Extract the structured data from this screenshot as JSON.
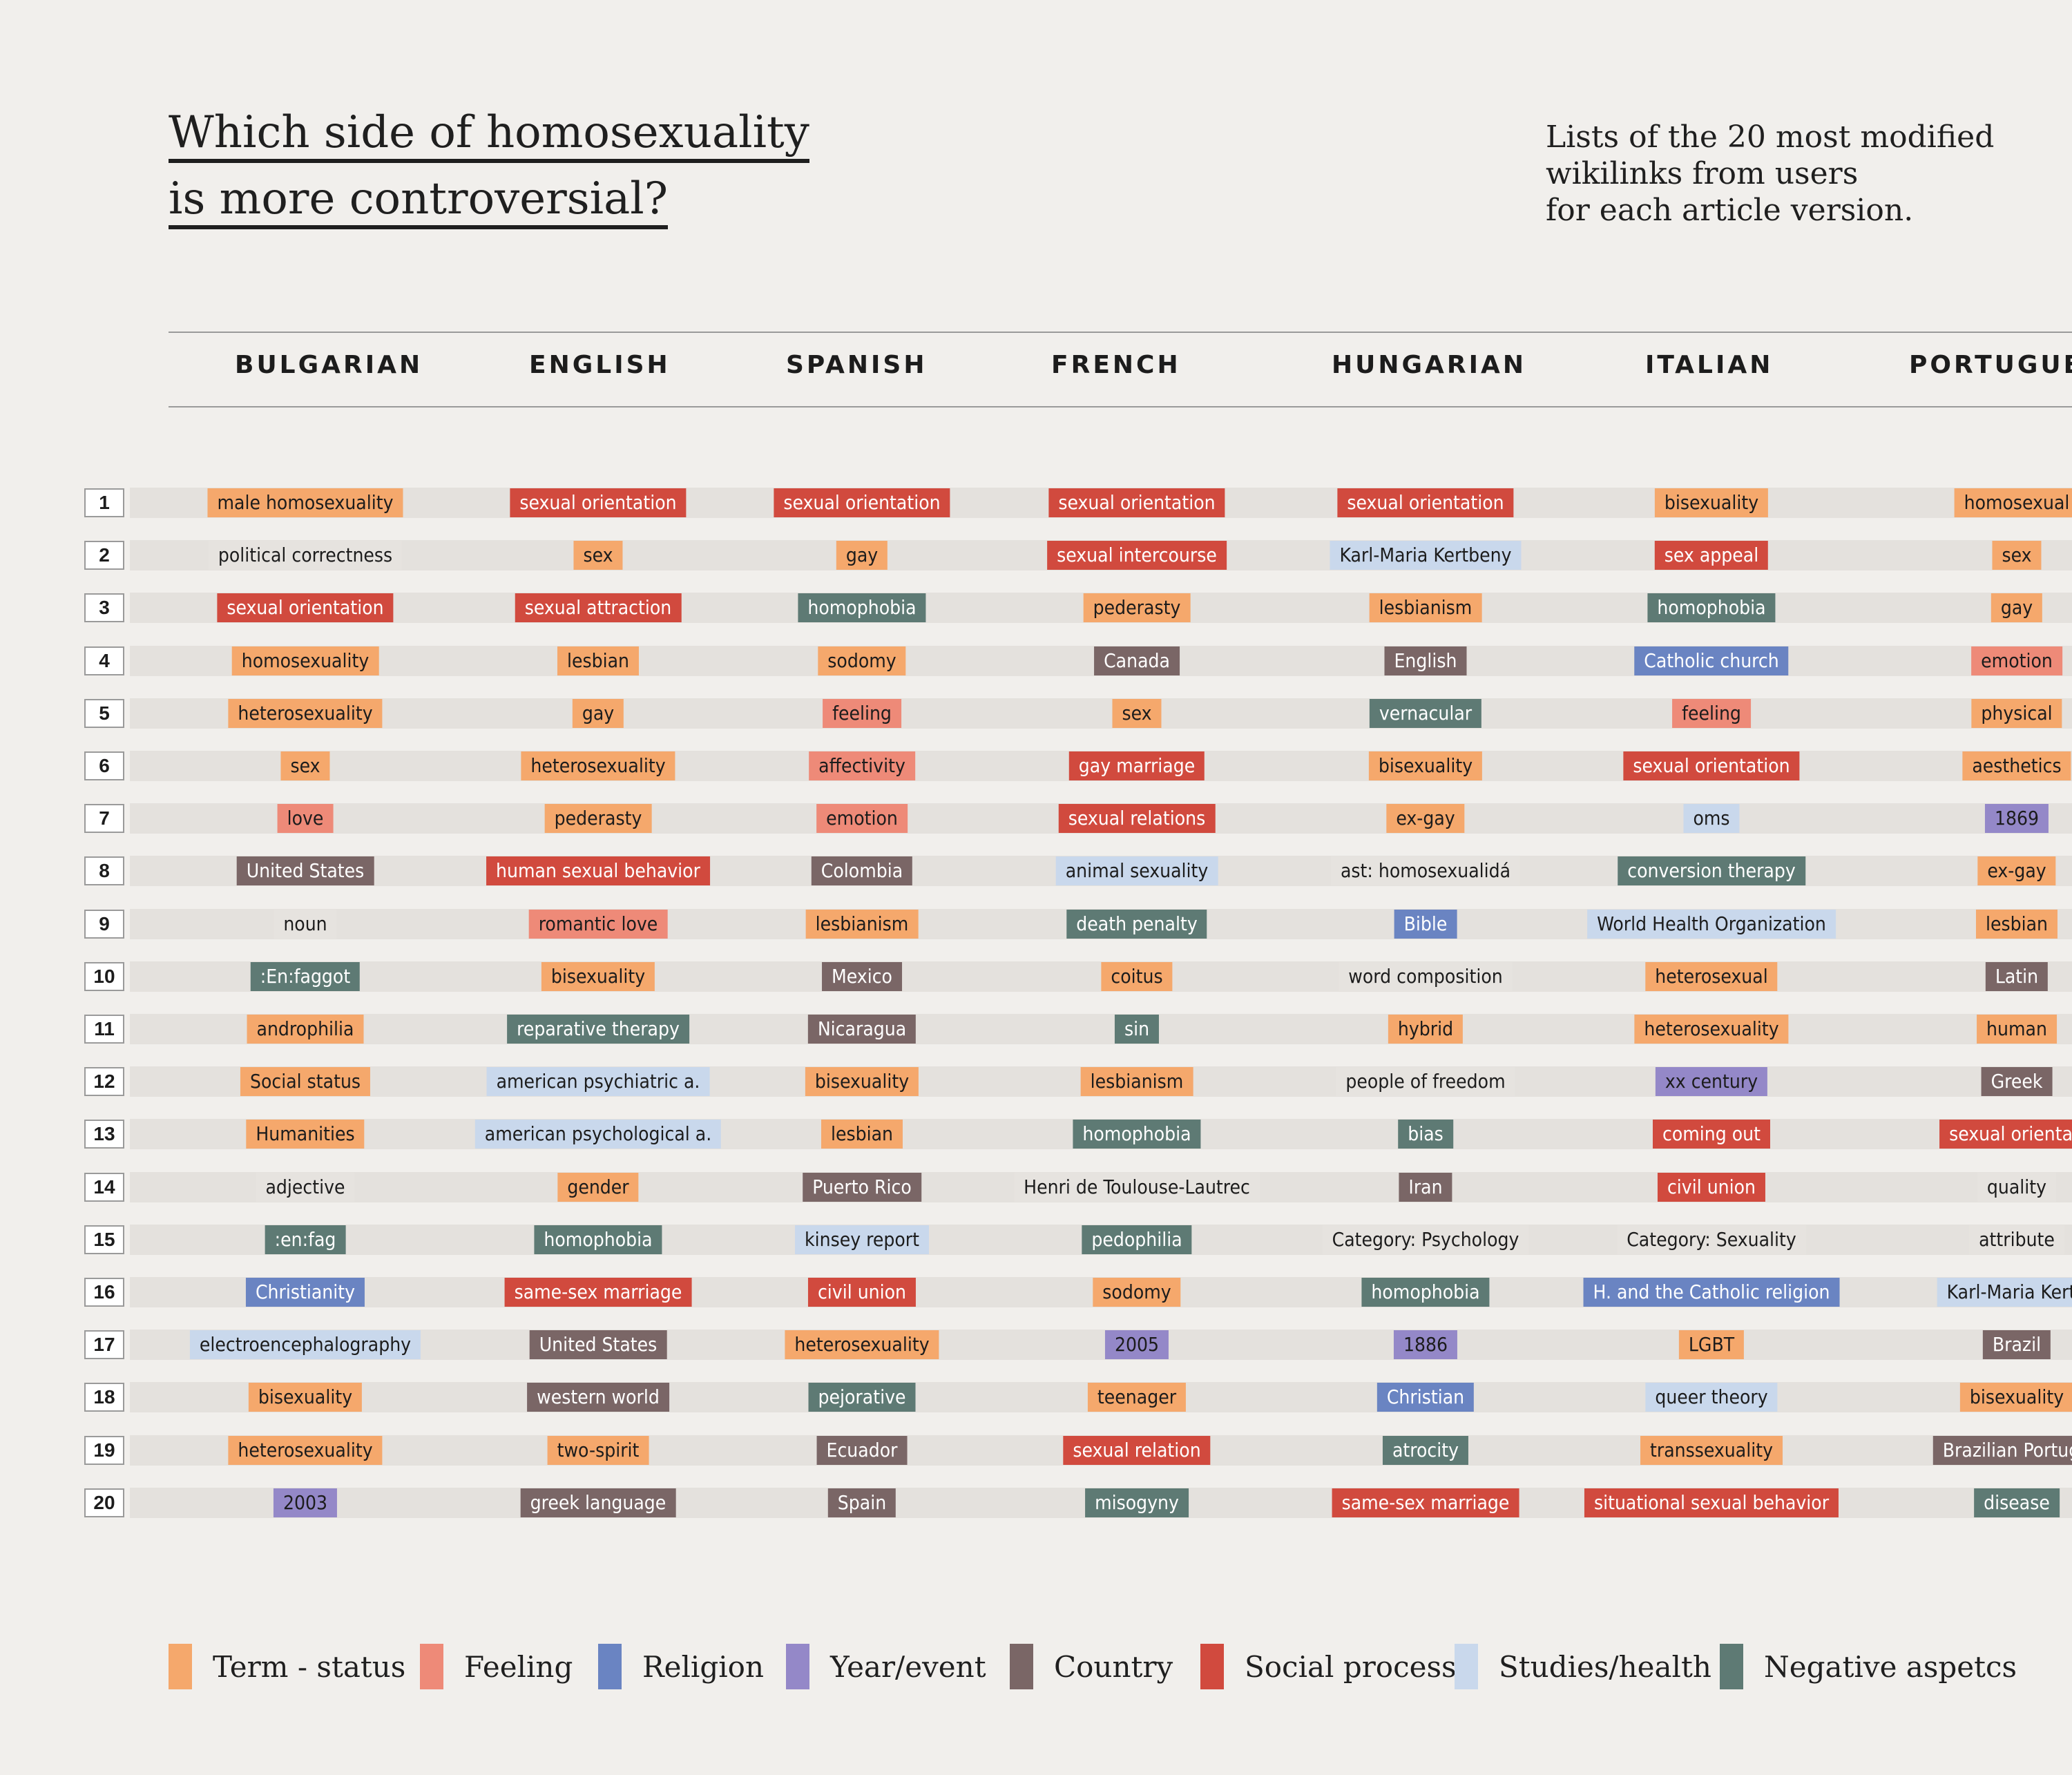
{
  "chart_data": {
    "type": "table",
    "title_line1": "Which side of homosexuality",
    "title_line2": "is more controversial?",
    "subtitle_line1": "Lists of the 20 most modified",
    "subtitle_line2": "wikilinks from users",
    "subtitle_line3": "for each article version.",
    "ranks": [
      "1",
      "2",
      "3",
      "4",
      "5",
      "6",
      "7",
      "8",
      "9",
      "10",
      "11",
      "12",
      "13",
      "14",
      "15",
      "16",
      "17",
      "18",
      "19",
      "20"
    ],
    "categories": [
      {
        "key": "term",
        "label": "Term - status",
        "color": "#f5a86c",
        "text": "dark-text"
      },
      {
        "key": "feeling",
        "label": "Feeling",
        "color": "#ee8a78",
        "text": "dark-text"
      },
      {
        "key": "religion",
        "label": "Religion",
        "color": "#6a84c2",
        "text": "light-text"
      },
      {
        "key": "year",
        "label": "Year/event",
        "color": "#9488c8",
        "text": "dark-text"
      },
      {
        "key": "country",
        "label": "Country",
        "color": "#7a6666",
        "text": "light-text"
      },
      {
        "key": "social",
        "label": "Social process",
        "color": "#d14a3e",
        "text": "light-text"
      },
      {
        "key": "studies",
        "label": "Studies/health",
        "color": "#c9d8ec",
        "text": "dark-text"
      },
      {
        "key": "negative",
        "label": "Negative aspetcs",
        "color": "#5e7a74",
        "text": "light-text"
      },
      {
        "key": "none",
        "label": "",
        "color": "#e6e3df",
        "text": "dark-text"
      }
    ],
    "columns": [
      {
        "name": "BULGARIAN",
        "items": [
          {
            "label": "male homosexuality",
            "category": "term"
          },
          {
            "label": "political correctness",
            "category": "none"
          },
          {
            "label": "sexual orientation",
            "category": "social"
          },
          {
            "label": "homosexuality",
            "category": "term"
          },
          {
            "label": "heterosexuality",
            "category": "term"
          },
          {
            "label": "sex",
            "category": "term"
          },
          {
            "label": "love",
            "category": "feeling"
          },
          {
            "label": "United States",
            "category": "country"
          },
          {
            "label": "noun",
            "category": "none"
          },
          {
            "label": ":En:faggot",
            "category": "negative"
          },
          {
            "label": "androphilia",
            "category": "term"
          },
          {
            "label": "Social status",
            "category": "term"
          },
          {
            "label": "Humanities",
            "category": "term"
          },
          {
            "label": "adjective",
            "category": "none"
          },
          {
            "label": ":en:fag",
            "category": "negative"
          },
          {
            "label": "Christianity",
            "category": "religion"
          },
          {
            "label": "electroencephalography",
            "category": "studies"
          },
          {
            "label": "bisexuality",
            "category": "term"
          },
          {
            "label": "heterosexuality",
            "category": "term"
          },
          {
            "label": "2003",
            "category": "year"
          }
        ]
      },
      {
        "name": "ENGLISH",
        "items": [
          {
            "label": "sexual orientation",
            "category": "social"
          },
          {
            "label": "sex",
            "category": "term"
          },
          {
            "label": "sexual attraction",
            "category": "social"
          },
          {
            "label": "lesbian",
            "category": "term"
          },
          {
            "label": "gay",
            "category": "term"
          },
          {
            "label": "heterosexuality",
            "category": "term"
          },
          {
            "label": "pederasty",
            "category": "term"
          },
          {
            "label": "human sexual behavior",
            "category": "social"
          },
          {
            "label": "romantic love",
            "category": "feeling"
          },
          {
            "label": "bisexuality",
            "category": "term"
          },
          {
            "label": "reparative therapy",
            "category": "negative"
          },
          {
            "label": "american psychiatric a.",
            "category": "studies"
          },
          {
            "label": "american psychological a.",
            "category": "studies"
          },
          {
            "label": "gender",
            "category": "term"
          },
          {
            "label": "homophobia",
            "category": "negative"
          },
          {
            "label": "same-sex marriage",
            "category": "social"
          },
          {
            "label": "United States",
            "category": "country"
          },
          {
            "label": "western world",
            "category": "country"
          },
          {
            "label": "two-spirit",
            "category": "term"
          },
          {
            "label": "greek language",
            "category": "country"
          }
        ]
      },
      {
        "name": "SPANISH",
        "items": [
          {
            "label": "sexual orientation",
            "category": "social"
          },
          {
            "label": "gay",
            "category": "term"
          },
          {
            "label": "homophobia",
            "category": "negative"
          },
          {
            "label": "sodomy",
            "category": "term"
          },
          {
            "label": "feeling",
            "category": "feeling"
          },
          {
            "label": "affectivity",
            "category": "feeling"
          },
          {
            "label": "emotion",
            "category": "feeling"
          },
          {
            "label": "Colombia",
            "category": "country"
          },
          {
            "label": "lesbianism",
            "category": "term"
          },
          {
            "label": "Mexico",
            "category": "country"
          },
          {
            "label": "Nicaragua",
            "category": "country"
          },
          {
            "label": "bisexuality",
            "category": "term"
          },
          {
            "label": "lesbian",
            "category": "term"
          },
          {
            "label": "Puerto Rico",
            "category": "country"
          },
          {
            "label": "kinsey report",
            "category": "studies"
          },
          {
            "label": "civil union",
            "category": "social"
          },
          {
            "label": "heterosexuality",
            "category": "term"
          },
          {
            "label": "pejorative",
            "category": "negative"
          },
          {
            "label": "Ecuador",
            "category": "country"
          },
          {
            "label": "Spain",
            "category": "country"
          }
        ]
      },
      {
        "name": "FRENCH",
        "items": [
          {
            "label": "sexual orientation",
            "category": "social"
          },
          {
            "label": "sexual intercourse",
            "category": "social"
          },
          {
            "label": "pederasty",
            "category": "term"
          },
          {
            "label": "Canada",
            "category": "country"
          },
          {
            "label": "sex",
            "category": "term"
          },
          {
            "label": "gay marriage",
            "category": "social"
          },
          {
            "label": "sexual relations",
            "category": "social"
          },
          {
            "label": "animal sexuality",
            "category": "studies"
          },
          {
            "label": "death penalty",
            "category": "negative"
          },
          {
            "label": "coitus",
            "category": "term"
          },
          {
            "label": "sin",
            "category": "negative"
          },
          {
            "label": "lesbianism",
            "category": "term"
          },
          {
            "label": "homophobia",
            "category": "negative"
          },
          {
            "label": "Henri de Toulouse-Lautrec",
            "category": "none"
          },
          {
            "label": "pedophilia",
            "category": "negative"
          },
          {
            "label": "sodomy",
            "category": "term"
          },
          {
            "label": "2005",
            "category": "year"
          },
          {
            "label": "teenager",
            "category": "term"
          },
          {
            "label": "sexual relation",
            "category": "social"
          },
          {
            "label": "misogyny",
            "category": "negative"
          }
        ]
      },
      {
        "name": "HUNGARIAN",
        "items": [
          {
            "label": "sexual orientation",
            "category": "social"
          },
          {
            "label": "Karl-Maria Kertbeny",
            "category": "studies"
          },
          {
            "label": "lesbianism",
            "category": "term"
          },
          {
            "label": "English",
            "category": "country"
          },
          {
            "label": "vernacular",
            "category": "negative"
          },
          {
            "label": "bisexuality",
            "category": "term"
          },
          {
            "label": "ex-gay",
            "category": "term"
          },
          {
            "label": "ast: homosexualidá",
            "category": "none"
          },
          {
            "label": "Bible",
            "category": "religion"
          },
          {
            "label": "word composition",
            "category": "none"
          },
          {
            "label": "hybrid",
            "category": "term"
          },
          {
            "label": "people of freedom",
            "category": "none"
          },
          {
            "label": "bias",
            "category": "negative"
          },
          {
            "label": "Iran",
            "category": "country"
          },
          {
            "label": "Category: Psychology",
            "category": "none"
          },
          {
            "label": "homophobia",
            "category": "negative"
          },
          {
            "label": "1886",
            "category": "year"
          },
          {
            "label": "Christian",
            "category": "religion"
          },
          {
            "label": "atrocity",
            "category": "negative"
          },
          {
            "label": "same-sex marriage",
            "category": "social"
          }
        ]
      },
      {
        "name": "ITALIAN",
        "items": [
          {
            "label": "bisexuality",
            "category": "term"
          },
          {
            "label": "sex appeal",
            "category": "social"
          },
          {
            "label": "homophobia",
            "category": "negative"
          },
          {
            "label": "Catholic church",
            "category": "religion"
          },
          {
            "label": "feeling",
            "category": "feeling"
          },
          {
            "label": "sexual orientation",
            "category": "social"
          },
          {
            "label": "oms",
            "category": "studies"
          },
          {
            "label": "conversion therapy",
            "category": "negative"
          },
          {
            "label": "World Health Organization",
            "category": "studies"
          },
          {
            "label": "heterosexual",
            "category": "term"
          },
          {
            "label": "heterosexuality",
            "category": "term"
          },
          {
            "label": "xx century",
            "category": "year"
          },
          {
            "label": "coming out",
            "category": "social"
          },
          {
            "label": "civil union",
            "category": "social"
          },
          {
            "label": "Category: Sexuality",
            "category": "none"
          },
          {
            "label": "H. and the Catholic religion",
            "category": "religion"
          },
          {
            "label": "LGBT",
            "category": "term"
          },
          {
            "label": "queer theory",
            "category": "studies"
          },
          {
            "label": "transsexuality",
            "category": "term"
          },
          {
            "label": "situational sexual behavior",
            "category": "social"
          }
        ]
      },
      {
        "name": "PORTUGUES",
        "items": [
          {
            "label": "homosexual",
            "category": "term"
          },
          {
            "label": "sex",
            "category": "term"
          },
          {
            "label": "gay",
            "category": "term"
          },
          {
            "label": "emotion",
            "category": "feeling"
          },
          {
            "label": "physical",
            "category": "term"
          },
          {
            "label": "aesthetics",
            "category": "term"
          },
          {
            "label": "1869",
            "category": "year"
          },
          {
            "label": "ex-gay",
            "category": "term"
          },
          {
            "label": "lesbian",
            "category": "term"
          },
          {
            "label": "Latin",
            "category": "country"
          },
          {
            "label": "human",
            "category": "term"
          },
          {
            "label": "Greek",
            "category": "country"
          },
          {
            "label": "sexual orientati",
            "category": "social"
          },
          {
            "label": "quality",
            "category": "none"
          },
          {
            "label": "attribute",
            "category": "none"
          },
          {
            "label": "Karl-Maria Kertb",
            "category": "studies"
          },
          {
            "label": "Brazil",
            "category": "country"
          },
          {
            "label": "bisexuality",
            "category": "term"
          },
          {
            "label": "Brazilian Portugu",
            "category": "country"
          },
          {
            "label": "disease",
            "category": "negative"
          }
        ]
      }
    ]
  }
}
